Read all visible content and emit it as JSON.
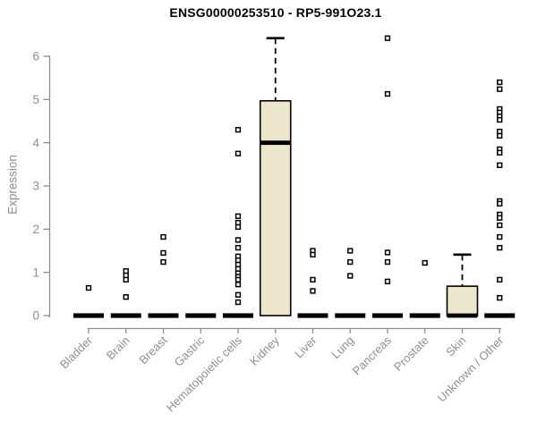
{
  "colors": {
    "background": "#ffffff",
    "box_fill": "#ece6cd",
    "box_border": "#000000",
    "median": "#000000",
    "whisker": "#000000",
    "outlier_fill": "#ffffff",
    "outlier_border": "#000000",
    "axis": "#8f8f8f",
    "title": "#000000"
  },
  "chart_data": {
    "type": "boxplot",
    "title": "ENSG00000253510 - RP5-991O23.1",
    "ylabel": "Expression",
    "xlabel": "",
    "ylim": [
      0,
      6.5
    ],
    "yticks": [
      0,
      1,
      2,
      3,
      4,
      5,
      6
    ],
    "grid": false,
    "legend": "none",
    "x_label_rotation_deg": 45,
    "categories": [
      "Bladder",
      "Brain",
      "Breast",
      "Gastric",
      "Hematopoietic cells",
      "Kidney",
      "Liver",
      "Lung",
      "Pancreas",
      "Prostate",
      "Skin",
      "Unknown / Other"
    ],
    "series": [
      {
        "name": "Bladder",
        "q1": 0,
        "median": 0,
        "q3": 0,
        "whisker_low": 0,
        "whisker_high": 0,
        "outliers": [
          0.64
        ]
      },
      {
        "name": "Brain",
        "q1": 0,
        "median": 0,
        "q3": 0,
        "whisker_low": 0,
        "whisker_high": 0,
        "outliers": [
          1.03,
          0.93,
          0.83,
          0.43
        ]
      },
      {
        "name": "Breast",
        "q1": 0,
        "median": 0,
        "q3": 0,
        "whisker_low": 0,
        "whisker_high": 0,
        "outliers": [
          1.82,
          1.45,
          1.24
        ]
      },
      {
        "name": "Gastric",
        "q1": 0,
        "median": 0,
        "q3": 0,
        "whisker_low": 0,
        "whisker_high": 0,
        "outliers": []
      },
      {
        "name": "Hematopoietic cells",
        "q1": 0,
        "median": 0,
        "q3": 0,
        "whisker_low": 0,
        "whisker_high": 0,
        "outliers": [
          4.3,
          3.75,
          2.3,
          2.15,
          2.05,
          1.75,
          1.57,
          1.37,
          1.28,
          1.18,
          1.08,
          0.98,
          0.9,
          0.83,
          0.72,
          0.48,
          0.31
        ]
      },
      {
        "name": "Kidney",
        "q1": 0,
        "median": 4.0,
        "q3": 4.97,
        "whisker_low": 0,
        "whisker_high": 6.42,
        "outliers": []
      },
      {
        "name": "Liver",
        "q1": 0,
        "median": 0,
        "q3": 0,
        "whisker_low": 0,
        "whisker_high": 0,
        "outliers": [
          1.5,
          1.41,
          0.83,
          0.57
        ]
      },
      {
        "name": "Lung",
        "q1": 0,
        "median": 0,
        "q3": 0,
        "whisker_low": 0,
        "whisker_high": 0,
        "outliers": [
          1.5,
          1.24,
          0.92
        ]
      },
      {
        "name": "Pancreas",
        "q1": 0,
        "median": 0,
        "q3": 0,
        "whisker_low": 0,
        "whisker_high": 0,
        "outliers": [
          6.42,
          5.13,
          1.46,
          1.24,
          0.79
        ]
      },
      {
        "name": "Prostate",
        "q1": 0,
        "median": 0,
        "q3": 0,
        "whisker_low": 0,
        "whisker_high": 0,
        "outliers": [
          1.22
        ]
      },
      {
        "name": "Skin",
        "q1": 0,
        "median": 0,
        "q3": 0.68,
        "whisker_low": 0,
        "whisker_high": 1.41,
        "outliers": []
      },
      {
        "name": "Unknown / Other",
        "q1": 0,
        "median": 0,
        "q3": 0,
        "whisker_low": 0,
        "whisker_high": 0,
        "outliers": [
          5.4,
          5.24,
          4.78,
          4.7,
          4.61,
          4.53,
          4.26,
          4.16,
          3.85,
          3.77,
          3.48,
          2.65,
          2.59,
          2.34,
          2.26,
          2.09,
          1.82,
          1.57,
          0.83,
          0.41
        ]
      }
    ]
  }
}
